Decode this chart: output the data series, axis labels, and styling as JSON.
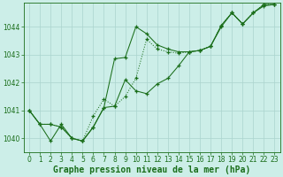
{
  "line1": {
    "x": [
      0,
      1,
      2,
      3,
      4,
      5,
      6,
      7,
      8,
      9,
      10,
      11,
      12,
      13,
      14,
      15,
      16,
      17,
      18,
      19,
      20,
      21,
      22,
      23
    ],
    "y": [
      1041.0,
      1040.5,
      1039.9,
      1040.5,
      1040.0,
      1039.9,
      1040.4,
      1041.1,
      1042.85,
      1042.9,
      1044.0,
      1043.75,
      1043.35,
      1043.2,
      1043.1,
      1043.1,
      1043.15,
      1043.3,
      1044.0,
      1044.5,
      1044.1,
      1044.5,
      1044.75,
      1044.8
    ]
  },
  "line2": {
    "x": [
      0,
      1,
      2,
      3,
      4,
      5,
      6,
      7,
      8,
      9,
      10,
      11,
      12,
      13,
      14,
      15,
      16,
      17,
      18,
      19,
      20,
      21,
      22,
      23
    ],
    "y": [
      1041.0,
      1040.5,
      1040.5,
      1040.4,
      1040.0,
      1039.9,
      1040.8,
      1041.4,
      1041.15,
      1041.5,
      1042.15,
      1043.55,
      1043.2,
      1043.1,
      1043.05,
      1043.1,
      1043.15,
      1043.3,
      1044.05,
      1044.5,
      1044.1,
      1044.5,
      1044.8,
      1044.8
    ]
  },
  "line3": {
    "x": [
      0,
      1,
      2,
      3,
      4,
      5,
      6,
      7,
      8,
      9,
      10,
      11,
      12,
      13,
      14,
      15,
      16,
      17,
      18,
      19,
      20,
      21,
      22,
      23
    ],
    "y": [
      1041.0,
      1040.5,
      1040.5,
      1040.4,
      1040.0,
      1039.9,
      1040.4,
      1041.1,
      1041.15,
      1042.1,
      1041.7,
      1041.6,
      1041.95,
      1042.15,
      1042.6,
      1043.1,
      1043.15,
      1043.3,
      1044.05,
      1044.5,
      1044.1,
      1044.5,
      1044.8,
      1044.8
    ]
  },
  "line_color": "#1a6e1a",
  "marker": "+",
  "bg_color": "#cceee8",
  "grid_color": "#aad4ce",
  "text_color": "#1a6e1a",
  "xlabel": "Graphe pression niveau de la mer (hPa)",
  "ylim": [
    1039.5,
    1044.85
  ],
  "xlim": [
    -0.5,
    23.5
  ],
  "yticks": [
    1040,
    1041,
    1042,
    1043,
    1044
  ],
  "xticks": [
    0,
    1,
    2,
    3,
    4,
    5,
    6,
    7,
    8,
    9,
    10,
    11,
    12,
    13,
    14,
    15,
    16,
    17,
    18,
    19,
    20,
    21,
    22,
    23
  ],
  "xtick_labels": [
    "0",
    "1",
    "2",
    "3",
    "4",
    "5",
    "6",
    "7",
    "8",
    "9",
    "10",
    "11",
    "12",
    "13",
    "14",
    "15",
    "16",
    "17",
    "18",
    "19",
    "20",
    "21",
    "22",
    "23"
  ],
  "fontsize_ticks": 5.5,
  "fontsize_xlabel": 7.0
}
